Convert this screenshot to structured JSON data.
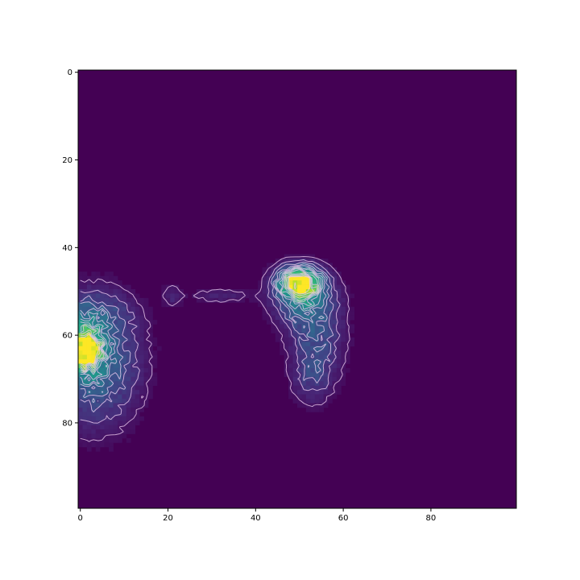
{
  "chart_data": {
    "type": "heatmap",
    "title": "",
    "xlabel": "",
    "ylabel": "",
    "colormap": "viridis",
    "contour_color": "#e8c8ec",
    "background_color": "#440154",
    "xlim": [
      0,
      99
    ],
    "ylim": [
      99,
      0
    ],
    "x_ticks": [
      0,
      20,
      40,
      60,
      80
    ],
    "y_ticks": [
      0,
      20,
      40,
      60,
      80
    ],
    "grid": false,
    "legend": "none",
    "blobs": [
      {
        "x": 50,
        "y": 48,
        "sx": 3.2,
        "sy": 2.3,
        "peak": 1.0
      },
      {
        "x": 51,
        "y": 52,
        "sx": 4.5,
        "sy": 4.0,
        "peak": 0.35
      },
      {
        "x": 54,
        "y": 61,
        "sx": 4.0,
        "sy": 6.0,
        "peak": 0.22
      },
      {
        "x": 53,
        "y": 70,
        "sx": 3.0,
        "sy": 4.0,
        "peak": 0.14
      },
      {
        "x": 21,
        "y": 51,
        "sx": 1.5,
        "sy": 1.8,
        "peak": 0.1
      },
      {
        "x": 32,
        "y": 51,
        "sx": 5.0,
        "sy": 1.2,
        "peak": 0.09
      },
      {
        "x": 1,
        "y": 63,
        "sx": 2.6,
        "sy": 3.2,
        "peak": 1.0
      },
      {
        "x": 3,
        "y": 66,
        "sx": 6.5,
        "sy": 9.0,
        "peak": 0.38
      },
      {
        "x": 2,
        "y": 55,
        "sx": 6.0,
        "sy": 3.0,
        "peak": 0.16
      }
    ]
  }
}
